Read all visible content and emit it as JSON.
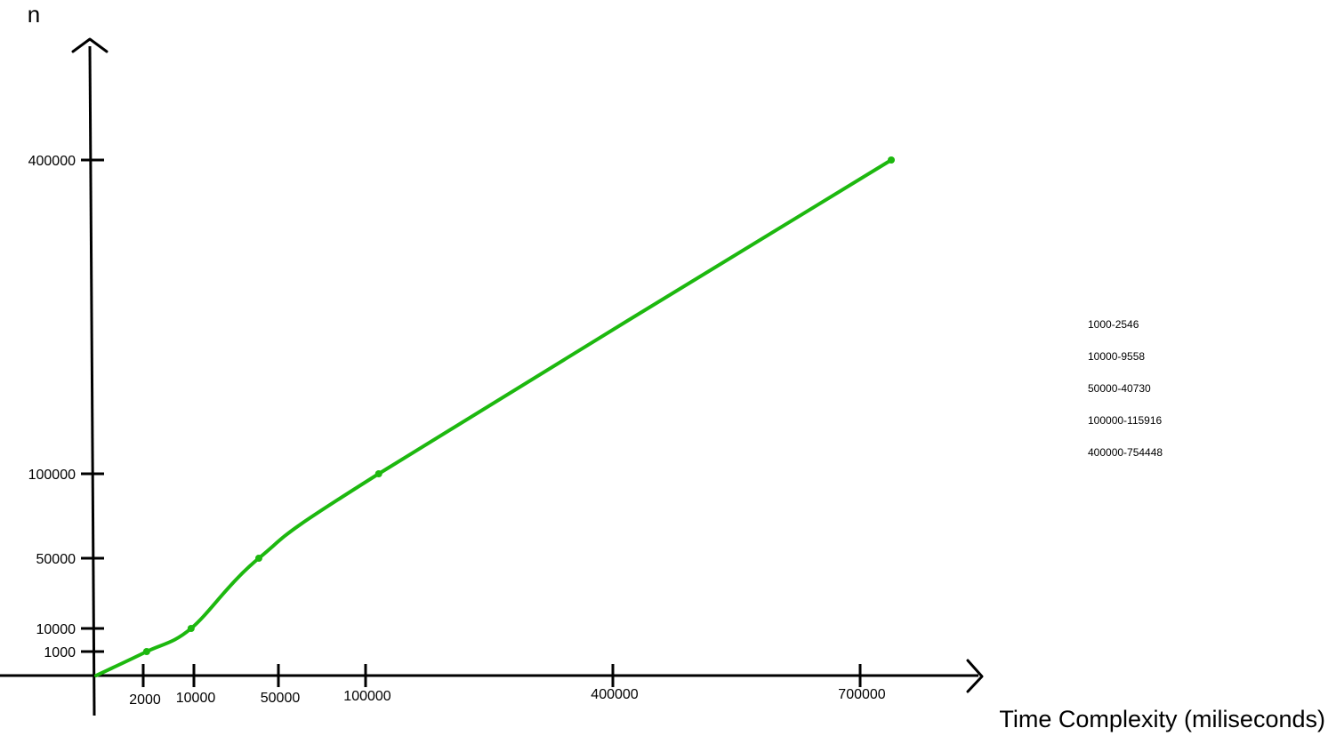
{
  "chart_data": {
    "type": "line",
    "title": "",
    "xlabel": "Time Complexity (miliseconds)",
    "ylabel": "n",
    "x_ticks": [
      2000,
      10000,
      50000,
      100000,
      400000,
      700000
    ],
    "y_ticks": [
      1000,
      10000,
      50000,
      100000,
      400000
    ],
    "series": [
      {
        "color": "#1db80f",
        "points": [
          {
            "x": 2546,
            "y": 1000
          },
          {
            "x": 9558,
            "y": 10000
          },
          {
            "x": 40730,
            "y": 50000
          },
          {
            "x": 115916,
            "y": 100000
          },
          {
            "x": 754448,
            "y": 400000
          }
        ]
      }
    ],
    "notes": [
      "1000-2546",
      "10000-9558",
      "50000-40730",
      "100000-115916",
      "400000-754448"
    ],
    "grid": false,
    "legend": "right"
  }
}
